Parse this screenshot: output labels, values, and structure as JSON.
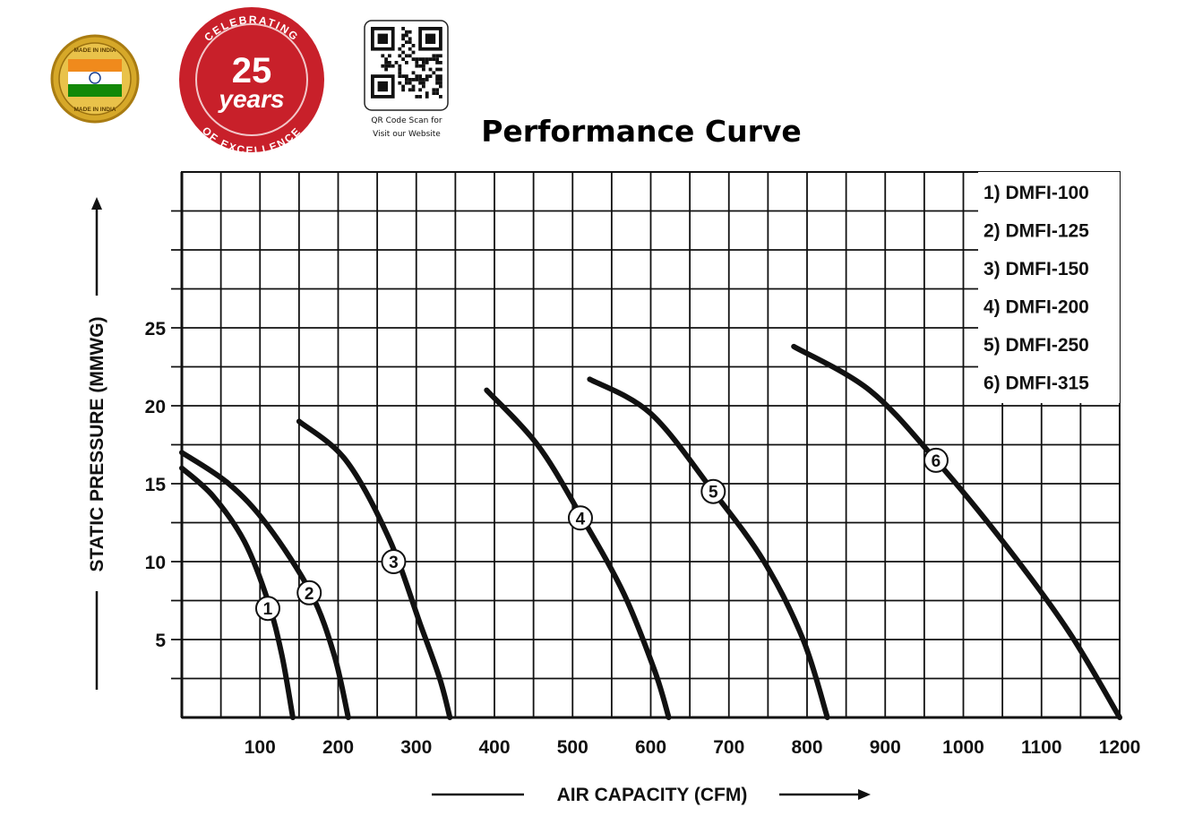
{
  "header": {
    "made_in_india_top": "MADE IN INDIA",
    "made_in_india_bottom": "MADE IN INDIA",
    "badge_top": "CELEBRATING",
    "badge_number": "25",
    "badge_years": "years",
    "badge_bottom": "OF EXCELLENCE",
    "qr_caption_line1": "QR Code Scan for",
    "qr_caption_line2": "Visit our Website",
    "title": "Performance Curve"
  },
  "colors": {
    "badge_red": "#c8202a",
    "seal_gold": "#d6a829",
    "saffron": "#f08a1c",
    "india_green": "#138808",
    "chakra_blue": "#1a3f8f",
    "curve": "#111111",
    "grid": "#111111"
  },
  "chart_data": {
    "type": "line",
    "title": "Performance Curve",
    "xlabel": "AIR CAPACITY (CFM)",
    "ylabel": "STATIC PRESSURE (MMWG)",
    "xlim": [
      0,
      1200
    ],
    "ylim": [
      0,
      35
    ],
    "x_ticks": [
      "100",
      "200",
      "300",
      "400",
      "500",
      "600",
      "700",
      "800",
      "900",
      "1000",
      "1100",
      "1200"
    ],
    "y_ticks": [
      "5",
      "10",
      "15",
      "20",
      "25"
    ],
    "grid": true,
    "legend_position": "top-right",
    "legend": [
      "1) DMFI-100",
      "2) DMFI-125",
      "3) DMFI-150",
      "4) DMFI-200",
      "5) DMFI-250",
      "6) DMFI-315"
    ],
    "series": [
      {
        "label": "1",
        "points": [
          [
            0,
            16
          ],
          [
            40,
            14.2
          ],
          [
            80,
            11.3
          ],
          [
            110,
            7.5
          ],
          [
            128,
            4
          ],
          [
            142,
            0
          ]
        ],
        "label_at": [
          110,
          7
        ]
      },
      {
        "label": "2",
        "points": [
          [
            0,
            17
          ],
          [
            60,
            15
          ],
          [
            110,
            12.3
          ],
          [
            165,
            8
          ],
          [
            195,
            4
          ],
          [
            213,
            0
          ]
        ],
        "label_at": [
          163,
          8
        ]
      },
      {
        "label": "3",
        "points": [
          [
            150,
            19
          ],
          [
            210,
            16.5
          ],
          [
            265,
            11.5
          ],
          [
            305,
            6
          ],
          [
            330,
            2.5
          ],
          [
            343,
            0
          ]
        ],
        "label_at": [
          271,
          10
        ]
      },
      {
        "label": "4",
        "points": [
          [
            390,
            21
          ],
          [
            455,
            17.5
          ],
          [
            510,
            13
          ],
          [
            565,
            8
          ],
          [
            605,
            3
          ],
          [
            623,
            0
          ]
        ],
        "label_at": [
          510,
          12.8
        ]
      },
      {
        "label": "5",
        "points": [
          [
            522,
            21.7
          ],
          [
            600,
            19.5
          ],
          [
            680,
            14.5
          ],
          [
            745,
            10
          ],
          [
            795,
            5
          ],
          [
            826,
            0
          ]
        ],
        "label_at": [
          680,
          14.5
        ]
      },
      {
        "label": "6",
        "points": [
          [
            783,
            23.8
          ],
          [
            880,
            21
          ],
          [
            965,
            16.5
          ],
          [
            1055,
            11
          ],
          [
            1135,
            5.5
          ],
          [
            1200,
            0
          ]
        ],
        "label_at": [
          965,
          16.5
        ]
      }
    ]
  }
}
